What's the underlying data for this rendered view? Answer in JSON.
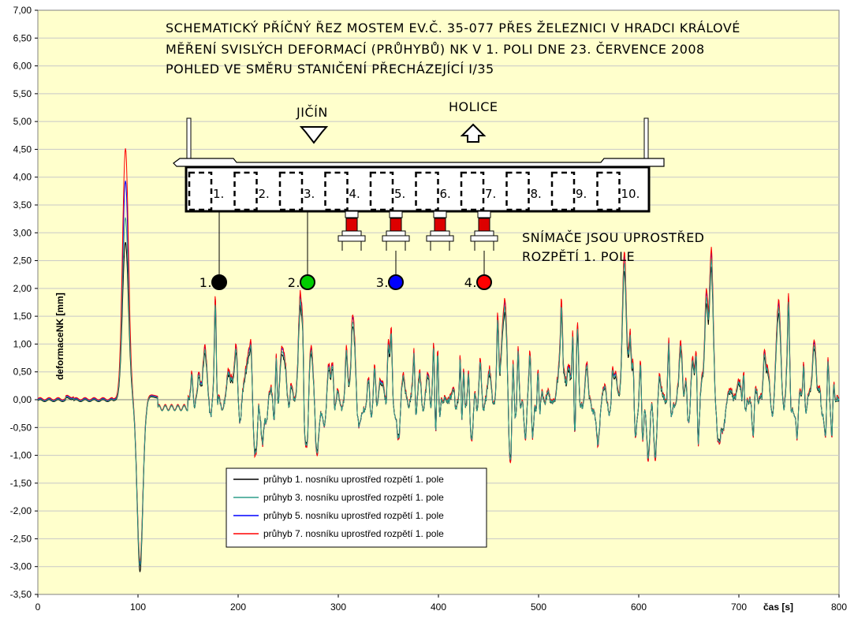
{
  "chart_data": {
    "type": "line",
    "title_lines": [
      "SCHEMATICKÝ PŘÍČNÝ ŘEZ MOSTEM EV.Č. 35-077 PŘES ŽELEZNICI V HRADCI KRÁLOVÉ",
      "MĚŘENÍ SVISLÝCH DEFORMACÍ (PRŮHYBŮ) NK V 1. POLI DNE 23. ČERVENCE 2008",
      "POHLED VE SMĚRU STANIČENÍ PŘECHÁZEJÍCÍ I/35"
    ],
    "xlabel": "čas [s]",
    "ylabel": "deformaceNK [mm]",
    "xlim": [
      0,
      800
    ],
    "ylim": [
      -3.5,
      7.0
    ],
    "x_ticks": [
      0,
      100,
      200,
      300,
      400,
      500,
      600,
      700,
      800
    ],
    "y_ticks": [
      "7,00",
      "6,50",
      "6,00",
      "5,50",
      "5,00",
      "4,50",
      "4,00",
      "3,50",
      "3,00",
      "2,50",
      "2,00",
      "1,50",
      "1,00",
      "0,50",
      "0,00",
      "-0,50",
      "-1,00",
      "-1,50",
      "-2,00",
      "-2,50",
      "-3,00",
      "-3,50"
    ],
    "grid": true,
    "plot_background": "#ffffcc",
    "legend_position": "bottom-left",
    "series": [
      {
        "name": "průhyb 1. nosníku uprostřed rozpětí 1. pole",
        "color": "#000000",
        "peak": 2.85,
        "trough": -3.08,
        "scale": 0.9
      },
      {
        "name": "průhyb 3. nosníku uprostřed rozpětí 1. pole",
        "color": "#2e9e8a",
        "peak": 3.28,
        "trough": -2.98,
        "scale": 0.95
      },
      {
        "name": "průhyb 5. nosníku uprostřed rozpětí 1. pole",
        "color": "#0000ff",
        "peak": 3.93,
        "trough": -2.95,
        "scale": 1.0
      },
      {
        "name": "průhyb 7. nosníku uprostřed rozpětí 1. pole",
        "color": "#ff0000",
        "peak": 4.5,
        "trough": -2.92,
        "scale": 1.02
      }
    ],
    "annotations": {
      "direction_left": "JIČÍN",
      "direction_right": "HOLICE",
      "beams": [
        "1.",
        "2.",
        "3.",
        "4.",
        "5.",
        "6.",
        "7.",
        "8.",
        "9.",
        "10."
      ],
      "sensor_note_lines": [
        "SNÍMAČE JSOU UPROSTŘED",
        "ROZPĚTÍ 1. POLE"
      ],
      "sensors": [
        {
          "label": "1.",
          "color": "#000000"
        },
        {
          "label": "2.",
          "color": "#00cc00"
        },
        {
          "label": "3.",
          "color": "#0000ff"
        },
        {
          "label": "4.",
          "color": "#ff0000"
        }
      ]
    }
  }
}
